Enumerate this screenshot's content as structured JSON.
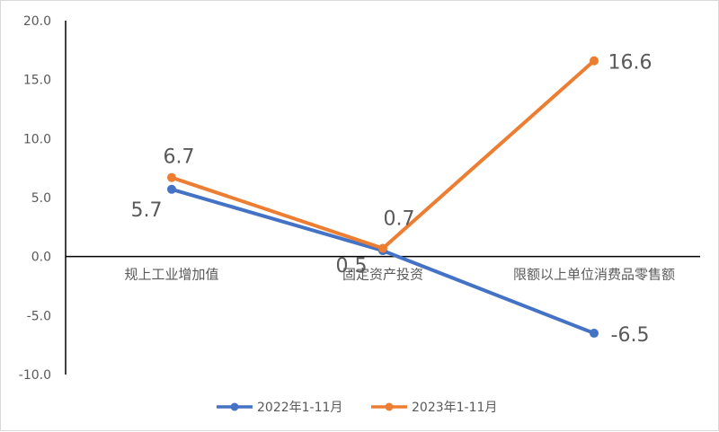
{
  "chart_data": {
    "type": "line",
    "categories": [
      "规上工业增加值",
      "固定资产投资",
      "限额以上单位消费品零售额"
    ],
    "series": [
      {
        "name": "2022年1-11月",
        "values": [
          5.7,
          0.5,
          -6.5
        ],
        "color": "#4472C4"
      },
      {
        "name": "2023年1-11月",
        "values": [
          6.7,
          0.7,
          16.6
        ],
        "color": "#ED7D31"
      }
    ],
    "ylim": [
      -10,
      20
    ],
    "y_ticks": [
      "20.0",
      "15.0",
      "10.0",
      "5.0",
      "0.0",
      "-5.0",
      "-10.0"
    ],
    "data_labels": {
      "2022年1-11月": [
        "5.7",
        "0.5",
        "-6.5"
      ],
      "2023年1-11月": [
        "6.7",
        "0.7",
        "16.6"
      ]
    },
    "title": "",
    "xlabel": "",
    "ylabel": "",
    "grid": false,
    "legend_position": "bottom"
  }
}
